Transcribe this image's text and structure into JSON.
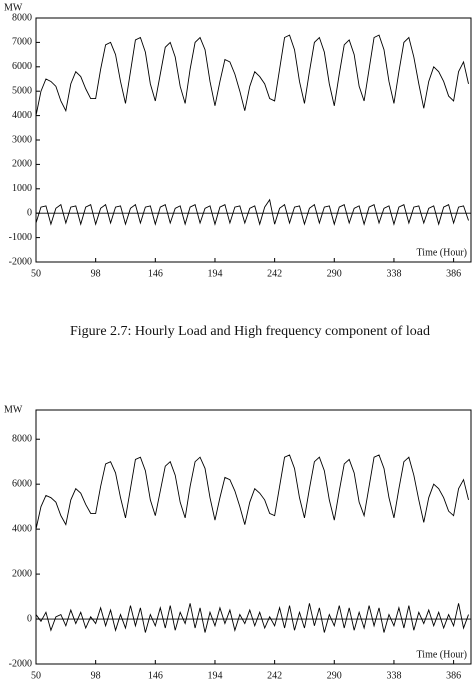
{
  "caption": "Figure 2.7:    Hourly Load and High frequency component of load",
  "chart_data": [
    {
      "type": "line",
      "y_label": "MW",
      "x_label": "Time (Hour)",
      "x": [
        50,
        54,
        58,
        62,
        66,
        70,
        74,
        78,
        82,
        86,
        90,
        94,
        98,
        102,
        106,
        110,
        114,
        118,
        122,
        126,
        130,
        134,
        138,
        142,
        146,
        150,
        154,
        158,
        162,
        166,
        170,
        174,
        178,
        182,
        186,
        190,
        194,
        198,
        202,
        206,
        210,
        214,
        218,
        222,
        226,
        230,
        234,
        238,
        242,
        246,
        250,
        254,
        258,
        262,
        266,
        270,
        274,
        278,
        282,
        286,
        290,
        294,
        298,
        302,
        306,
        310,
        314,
        318,
        322,
        326,
        330,
        334,
        338,
        342,
        346,
        350,
        354,
        358,
        362,
        366,
        370,
        374,
        378,
        382,
        386,
        390,
        394,
        398
      ],
      "xlim": [
        50,
        400
      ],
      "xticks": [
        50,
        98,
        146,
        194,
        242,
        290,
        338,
        386
      ],
      "ylim": [
        -2000,
        8000
      ],
      "yticks": [
        -2000,
        -1000,
        0,
        1000,
        2000,
        3000,
        4000,
        5000,
        6000,
        7000,
        8000
      ],
      "series": [
        {
          "color": "#000000",
          "values": [
            4000,
            5000,
            5500,
            5400,
            5200,
            4600,
            4200,
            5300,
            5800,
            5600,
            5100,
            4700,
            4700,
            5900,
            6900,
            7000,
            6500,
            5400,
            4500,
            5800,
            7100,
            7200,
            6600,
            5300,
            4600,
            5700,
            6800,
            7000,
            6400,
            5200,
            4500,
            5900,
            7000,
            7200,
            6700,
            5400,
            4400,
            5400,
            6300,
            6200,
            5700,
            5000,
            4200,
            5200,
            5800,
            5600,
            5300,
            4700,
            4600,
            5900,
            7200,
            7300,
            6700,
            5400,
            4500,
            5800,
            7000,
            7200,
            6600,
            5300,
            4400,
            5700,
            6900,
            7100,
            6500,
            5200,
            4600,
            5900,
            7200,
            7300,
            6700,
            5400,
            4500,
            5800,
            7000,
            7200,
            6400,
            5300,
            4300,
            5400,
            6000,
            5800,
            5400,
            4800,
            4600,
            5800,
            6200,
            5300
          ]
        },
        {
          "color": "#000000",
          "values": [
            -400,
            250,
            300,
            -450,
            200,
            350,
            -400,
            250,
            300,
            -450,
            250,
            350,
            -450,
            200,
            350,
            -400,
            250,
            300,
            -450,
            200,
            350,
            -400,
            250,
            300,
            -450,
            250,
            350,
            -400,
            200,
            300,
            -450,
            250,
            350,
            -400,
            200,
            300,
            -450,
            250,
            350,
            -400,
            250,
            300,
            -400,
            200,
            300,
            -450,
            250,
            550,
            -450,
            200,
            350,
            -400,
            250,
            300,
            -450,
            200,
            350,
            -400,
            250,
            300,
            -450,
            250,
            350,
            -400,
            200,
            300,
            -450,
            250,
            350,
            -400,
            200,
            300,
            -450,
            250,
            350,
            -400,
            250,
            300,
            -400,
            200,
            300,
            -450,
            250,
            350,
            -400,
            250,
            300,
            -300
          ]
        }
      ]
    },
    {
      "type": "line",
      "y_label": "MW",
      "x_label": "Time (Hour)",
      "x": [
        50,
        54,
        58,
        62,
        66,
        70,
        74,
        78,
        82,
        86,
        90,
        94,
        98,
        102,
        106,
        110,
        114,
        118,
        122,
        126,
        130,
        134,
        138,
        142,
        146,
        150,
        154,
        158,
        162,
        166,
        170,
        174,
        178,
        182,
        186,
        190,
        194,
        198,
        202,
        206,
        210,
        214,
        218,
        222,
        226,
        230,
        234,
        238,
        242,
        246,
        250,
        254,
        258,
        262,
        266,
        270,
        274,
        278,
        282,
        286,
        290,
        294,
        298,
        302,
        306,
        310,
        314,
        318,
        322,
        326,
        330,
        334,
        338,
        342,
        346,
        350,
        354,
        358,
        362,
        366,
        370,
        374,
        378,
        382,
        386,
        390,
        394,
        398
      ],
      "xlim": [
        50,
        400
      ],
      "xticks": [
        50,
        98,
        146,
        194,
        242,
        290,
        338,
        386
      ],
      "ylim": [
        -2000,
        9300
      ],
      "yticks": [
        -2000,
        0,
        2000,
        4000,
        6000,
        8000
      ],
      "series": [
        {
          "color": "#000000",
          "values": [
            4000,
            5000,
            5500,
            5400,
            5200,
            4600,
            4200,
            5300,
            5800,
            5600,
            5100,
            4700,
            4700,
            5900,
            6900,
            7000,
            6500,
            5400,
            4500,
            5800,
            7100,
            7200,
            6600,
            5300,
            4600,
            5700,
            6800,
            7000,
            6400,
            5200,
            4500,
            5900,
            7000,
            7200,
            6700,
            5400,
            4400,
            5400,
            6300,
            6200,
            5700,
            5000,
            4200,
            5200,
            5800,
            5600,
            5300,
            4700,
            4600,
            5900,
            7200,
            7300,
            6700,
            5400,
            4500,
            5800,
            7000,
            7200,
            6600,
            5300,
            4400,
            5700,
            6900,
            7100,
            6500,
            5200,
            4600,
            5900,
            7200,
            7300,
            6700,
            5400,
            4500,
            5800,
            7000,
            7200,
            6400,
            5300,
            4300,
            5400,
            6000,
            5800,
            5400,
            4800,
            4600,
            5800,
            6200,
            5300
          ]
        },
        {
          "color": "#000000",
          "values": [
            200,
            -100,
            300,
            -500,
            100,
            200,
            -300,
            400,
            -200,
            300,
            -400,
            100,
            -200,
            500,
            -300,
            400,
            -500,
            200,
            -400,
            600,
            -300,
            500,
            -600,
            200,
            -300,
            500,
            -400,
            600,
            -500,
            300,
            -200,
            700,
            -400,
            500,
            -600,
            300,
            -300,
            500,
            -200,
            400,
            -500,
            200,
            -200,
            400,
            -300,
            300,
            -400,
            100,
            -300,
            500,
            -400,
            600,
            -500,
            300,
            -400,
            700,
            -300,
            500,
            -600,
            200,
            -300,
            600,
            -400,
            500,
            -500,
            300,
            -400,
            600,
            -300,
            500,
            -600,
            200,
            -300,
            500,
            -400,
            600,
            -500,
            300,
            -200,
            400,
            -300,
            300,
            -400,
            200,
            -300,
            700,
            -400,
            200
          ]
        }
      ]
    }
  ]
}
